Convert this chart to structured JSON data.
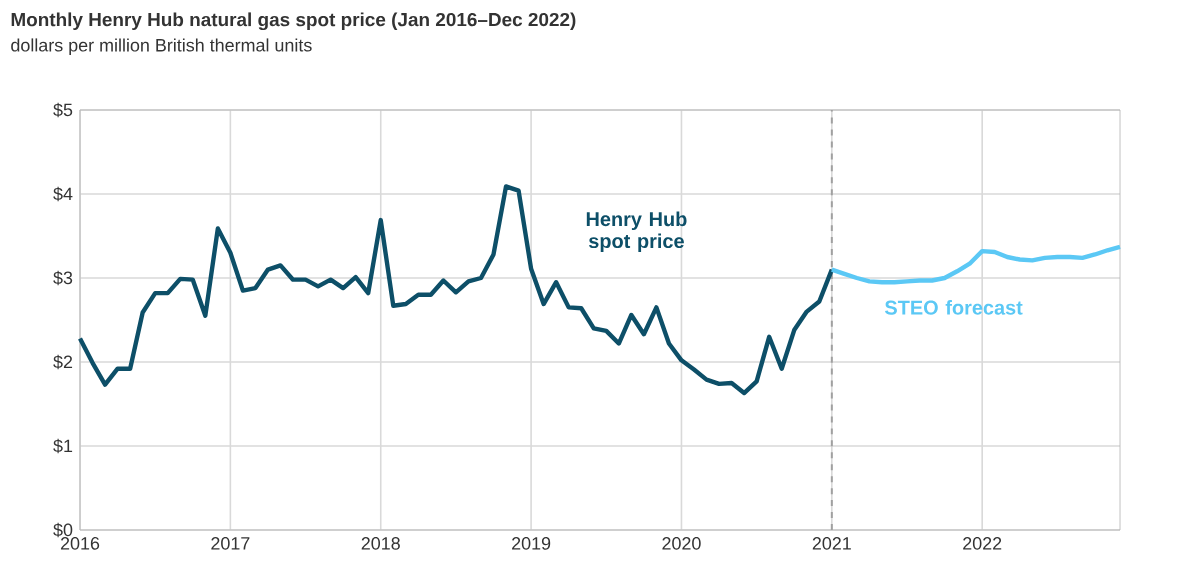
{
  "chart_data": {
    "type": "line",
    "title": "Monthly Henry Hub natural gas spot price (Jan 2016–Dec 2022)",
    "subtitle": "dollars per million British thermal units",
    "series": [
      {
        "name": "Henry Hub spot price",
        "color": "#0d4f68",
        "x": [
          "2016-01",
          "2016-02",
          "2016-03",
          "2016-04",
          "2016-05",
          "2016-06",
          "2016-07",
          "2016-08",
          "2016-09",
          "2016-10",
          "2016-11",
          "2016-12",
          "2017-01",
          "2017-02",
          "2017-03",
          "2017-04",
          "2017-05",
          "2017-06",
          "2017-07",
          "2017-08",
          "2017-09",
          "2017-10",
          "2017-11",
          "2017-12",
          "2018-01",
          "2018-02",
          "2018-03",
          "2018-04",
          "2018-05",
          "2018-06",
          "2018-07",
          "2018-08",
          "2018-09",
          "2018-10",
          "2018-11",
          "2018-12",
          "2019-01",
          "2019-02",
          "2019-03",
          "2019-04",
          "2019-05",
          "2019-06",
          "2019-07",
          "2019-08",
          "2019-09",
          "2019-10",
          "2019-11",
          "2019-12",
          "2020-01",
          "2020-02",
          "2020-03",
          "2020-04",
          "2020-05",
          "2020-06",
          "2020-07",
          "2020-08",
          "2020-09",
          "2020-10",
          "2020-11",
          "2020-12",
          "2021-01"
        ],
        "values": [
          2.28,
          1.99,
          1.73,
          1.92,
          1.92,
          2.59,
          2.82,
          2.82,
          2.99,
          2.98,
          2.55,
          3.59,
          3.3,
          2.85,
          2.88,
          3.1,
          3.15,
          2.98,
          2.98,
          2.9,
          2.98,
          2.88,
          3.01,
          2.82,
          3.69,
          2.67,
          2.69,
          2.8,
          2.8,
          2.97,
          2.83,
          2.96,
          3.0,
          3.28,
          4.09,
          4.04,
          3.11,
          2.69,
          2.95,
          2.65,
          2.64,
          2.4,
          2.37,
          2.22,
          2.56,
          2.33,
          2.65,
          2.22,
          2.02,
          1.91,
          1.79,
          1.74,
          1.75,
          1.63,
          1.77,
          2.3,
          1.92,
          2.38,
          2.6,
          2.72,
          3.1
        ]
      },
      {
        "name": "STEO forecast",
        "color": "#5bc8f5",
        "x": [
          "2021-01",
          "2021-02",
          "2021-03",
          "2021-04",
          "2021-05",
          "2021-06",
          "2021-07",
          "2021-08",
          "2021-09",
          "2021-10",
          "2021-11",
          "2021-12",
          "2022-01",
          "2022-02",
          "2022-03",
          "2022-04",
          "2022-05",
          "2022-06",
          "2022-07",
          "2022-08",
          "2022-09",
          "2022-10",
          "2022-11",
          "2022-12"
        ],
        "values": [
          3.1,
          3.05,
          3.0,
          2.96,
          2.95,
          2.95,
          2.96,
          2.97,
          2.97,
          3.0,
          3.08,
          3.17,
          3.32,
          3.31,
          3.25,
          3.22,
          3.21,
          3.24,
          3.25,
          3.25,
          3.24,
          3.28,
          3.33,
          3.37
        ]
      }
    ],
    "xlim": [
      "2016-01",
      "2022-12"
    ],
    "xticks": [
      "2016",
      "2017",
      "2018",
      "2019",
      "2020",
      "2021",
      "2022"
    ],
    "ylim": [
      0,
      5
    ],
    "yticks": [
      {
        "value": 0,
        "label": "$0"
      },
      {
        "value": 1,
        "label": "$1"
      },
      {
        "value": 2,
        "label": "$2"
      },
      {
        "value": 3,
        "label": "$3"
      },
      {
        "value": 4,
        "label": "$4"
      },
      {
        "value": 5,
        "label": "$5"
      }
    ],
    "grid": true,
    "legend": false,
    "marker": "none",
    "line_style": "solid",
    "ref_lines": [
      {
        "axis": "x",
        "value": "2021",
        "color": "#a0a0a0",
        "line_style": "dashed"
      }
    ]
  }
}
